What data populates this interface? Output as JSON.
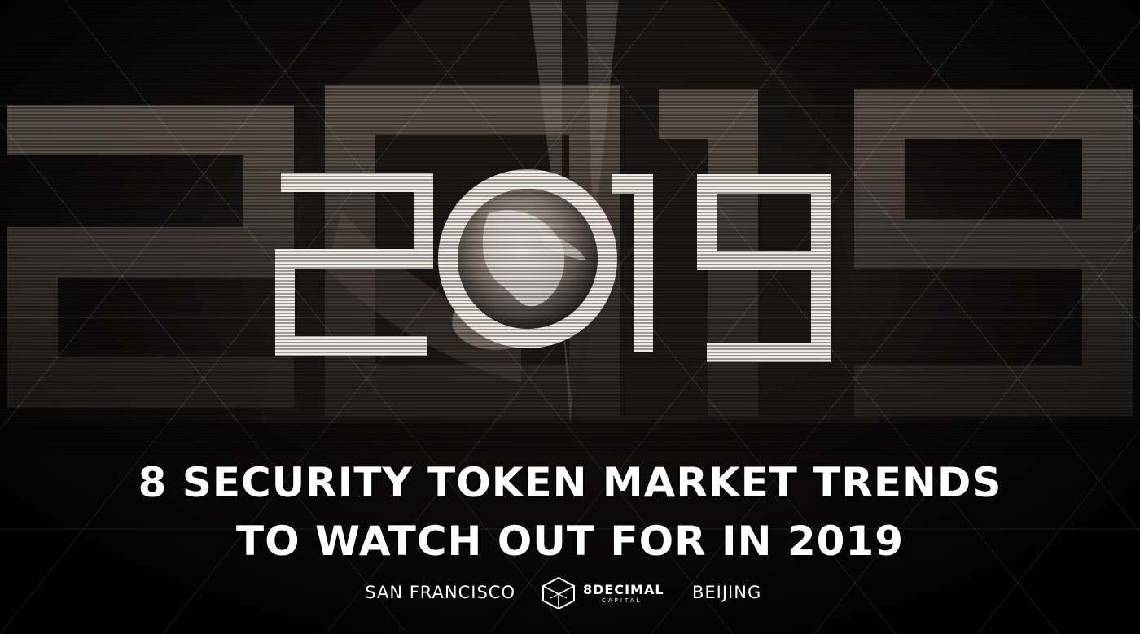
{
  "image": {
    "big_year": "2019",
    "headline_line1": "8 SECURITY TOKEN MARKET TRENDS",
    "headline_line2": "TO WATCH OUT FOR IN 2019",
    "location_left": "SAN FRANCISCO",
    "location_right": "BEIJING",
    "logo_name": "8DECIMAL",
    "logo_sub": "CAPITAL"
  },
  "colors": {
    "background": "#050505",
    "text": "#ffffff",
    "accent_ghost": "#8a7a6e"
  },
  "icons": {
    "logo": "hexagonal-cube-icon",
    "globe": "globe-icon"
  }
}
